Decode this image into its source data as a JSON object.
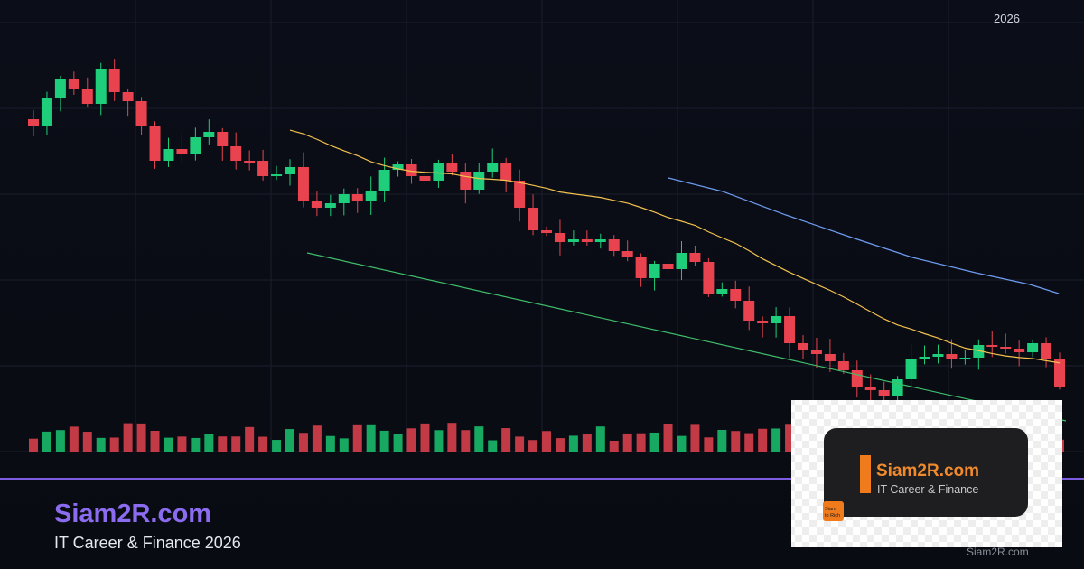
{
  "header": {
    "year": "2026"
  },
  "brand": {
    "title": "Siam2R.com",
    "subtitle": "IT Career & Finance 2026"
  },
  "logo": {
    "title": "Siam2R.com",
    "subtitle": "IT Career & Finance",
    "badge_line1": "Siam",
    "badge_line2": "to Rich"
  },
  "footer": {
    "site": "Siam2R.com"
  }
}
